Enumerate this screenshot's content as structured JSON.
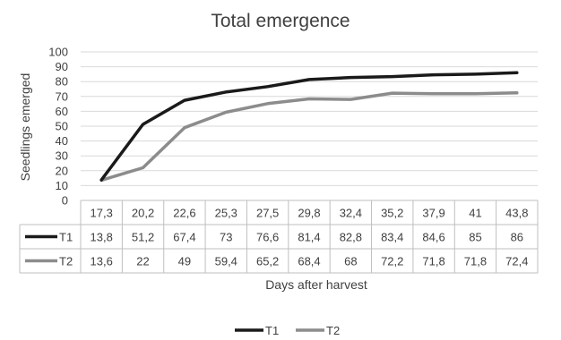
{
  "chart_data": {
    "type": "line",
    "title": "Total emergence",
    "xlabel": "Days after harvest",
    "ylabel": "Seedlings emerged",
    "ylim": [
      0,
      100
    ],
    "y_ticks": [
      "0",
      "10",
      "20",
      "30",
      "40",
      "50",
      "60",
      "70",
      "80",
      "90",
      "100"
    ],
    "categories": [
      "17,3",
      "20,2",
      "22,6",
      "25,3",
      "27,5",
      "29,8",
      "32,4",
      "35,2",
      "37,9",
      "41",
      "43,8"
    ],
    "series": [
      {
        "name": "T1",
        "color": "#1a1a1a",
        "values": [
          13.8,
          51.2,
          67.4,
          73,
          76.6,
          81.4,
          82.8,
          83.4,
          84.6,
          85,
          86
        ],
        "labels": [
          "13,8",
          "51,2",
          "67,4",
          "73",
          "76,6",
          "81,4",
          "82,8",
          "83,4",
          "84,6",
          "85",
          "86"
        ]
      },
      {
        "name": "T2",
        "color": "#8c8c8c",
        "values": [
          13.6,
          22,
          49,
          59.4,
          65.2,
          68.4,
          68,
          72.2,
          71.8,
          71.8,
          72.4
        ],
        "labels": [
          "13,6",
          "22",
          "49",
          "59,4",
          "65,2",
          "68,4",
          "68",
          "72,2",
          "71,8",
          "71,8",
          "72,4"
        ]
      }
    ],
    "grid": true,
    "data_table": true,
    "legend": "bottom"
  }
}
